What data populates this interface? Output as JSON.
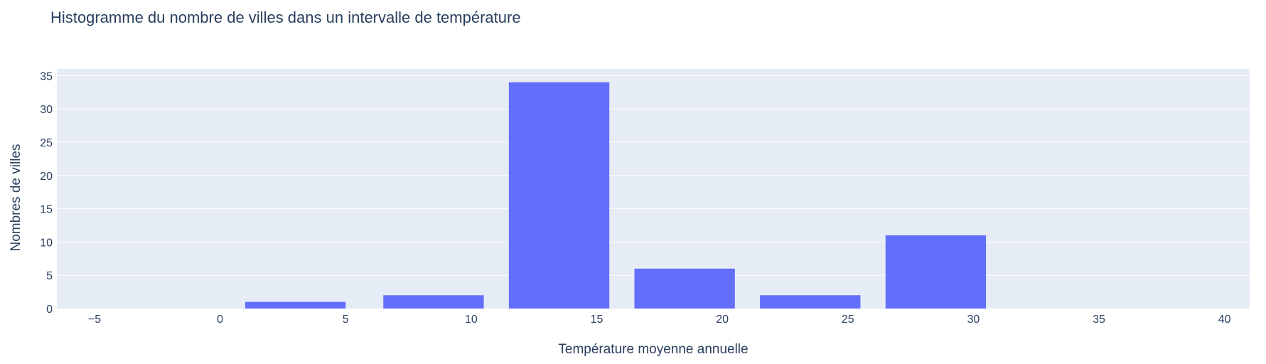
{
  "chart_data": {
    "type": "bar",
    "title": "Histogramme du nombre de villes dans un intervalle de température",
    "xlabel": "Température moyenne annuelle",
    "ylabel": "Nombres de villes",
    "xlim": [
      -6.5,
      41
    ],
    "ylim": [
      0,
      36
    ],
    "x_ticks": [
      "−5",
      "0",
      "5",
      "10",
      "15",
      "20",
      "25",
      "30",
      "35",
      "40"
    ],
    "y_ticks": [
      "0",
      "5",
      "10",
      "15",
      "20",
      "25",
      "30",
      "35"
    ],
    "bins": [
      {
        "x0": 1,
        "x1": 5,
        "value": 1
      },
      {
        "x0": 6.5,
        "x1": 10.5,
        "value": 2
      },
      {
        "x0": 11.5,
        "x1": 15.5,
        "value": 34
      },
      {
        "x0": 16.5,
        "x1": 20.5,
        "value": 6
      },
      {
        "x0": 21.5,
        "x1": 25.5,
        "value": 2
      },
      {
        "x0": 26.5,
        "x1": 30.5,
        "value": 11
      }
    ],
    "grid": true,
    "bar_color": "#636efa",
    "plot_background": "#e5ecf6"
  }
}
